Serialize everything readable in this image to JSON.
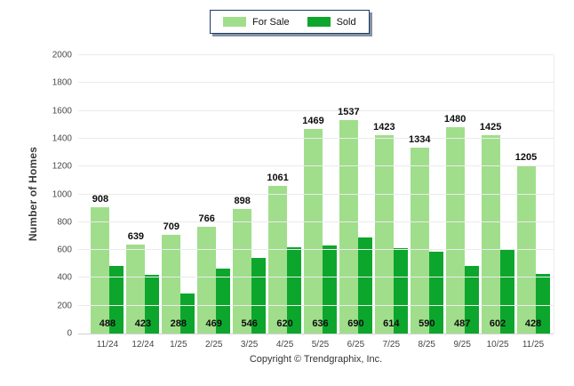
{
  "legend": {
    "items": [
      {
        "label": "For Sale",
        "color": "#A0DE8C"
      },
      {
        "label": "Sold",
        "color": "#0DA62D"
      }
    ]
  },
  "colors": {
    "for_sale": "#A0DE8C",
    "sold": "#0DA62D",
    "grid": "#EBEBEB",
    "axis_line": "#D2D2D2",
    "legend_border": "#1E3A62",
    "text": "#3B3B3B"
  },
  "chart_data": {
    "type": "bar",
    "categories": [
      "11/24",
      "12/24",
      "1/25",
      "2/25",
      "3/25",
      "4/25",
      "5/25",
      "6/25",
      "7/25",
      "8/25",
      "9/25",
      "10/25",
      "11/25"
    ],
    "series": [
      {
        "name": "For Sale",
        "color": "#A0DE8C",
        "values": [
          908,
          639,
          709,
          766,
          898,
          1061,
          1469,
          1537,
          1423,
          1334,
          1480,
          1425,
          1205
        ]
      },
      {
        "name": "Sold",
        "color": "#0DA62D",
        "values": [
          488,
          423,
          288,
          469,
          546,
          620,
          636,
          690,
          614,
          590,
          487,
          602,
          428
        ]
      }
    ],
    "title": "",
    "xlabel": "",
    "ylabel": "Number of Homes",
    "ylim": [
      0,
      2000
    ],
    "ytick_step": 200,
    "grid": true,
    "legend_position": "top-center",
    "value_labels": {
      "for_sale": "above-bar",
      "sold": "inside-bottom"
    }
  },
  "footer": {
    "copyright": "Copyright © Trendgraphix, Inc."
  }
}
